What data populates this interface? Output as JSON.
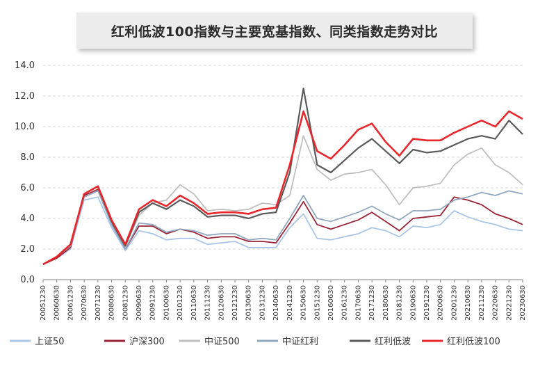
{
  "chart_data": {
    "type": "line",
    "title": "红利低波100指数与主要宽基指数、同类指数走势对比",
    "ylim": [
      0,
      14
    ],
    "yticks": [
      "0.0",
      "2.0",
      "4.0",
      "6.0",
      "8.0",
      "10.0",
      "12.0",
      "14.0"
    ],
    "grid": "horizontal dashed",
    "legend_position": "bottom",
    "x": [
      "20051230",
      "20060630",
      "20061230",
      "20070630",
      "20071230",
      "20080630",
      "20081230",
      "20090630",
      "20091230",
      "20100630",
      "20101230",
      "20110630",
      "20111230",
      "20120630",
      "20121230",
      "20130630",
      "20131230",
      "20140630",
      "20141230",
      "20150630",
      "20151230",
      "20160630",
      "20161230",
      "20170630",
      "20171230",
      "20180630",
      "20181230",
      "20190630",
      "20191230",
      "20200630",
      "20201230",
      "20210630",
      "20211230",
      "20220630",
      "20221230",
      "20230630"
    ],
    "series": [
      {
        "name": "上证50",
        "color": "#a9c6e8",
        "values": [
          1.0,
          1.4,
          2.0,
          5.2,
          5.4,
          3.4,
          1.9,
          3.2,
          3.0,
          2.6,
          2.7,
          2.7,
          2.3,
          2.4,
          2.5,
          2.1,
          2.1,
          2.1,
          3.4,
          4.3,
          2.7,
          2.6,
          2.8,
          3.0,
          3.4,
          3.2,
          2.8,
          3.5,
          3.4,
          3.6,
          4.5,
          4.1,
          3.8,
          3.6,
          3.3,
          3.2
        ]
      },
      {
        "name": "沪深300",
        "color": "#9b2335",
        "values": [
          1.0,
          1.4,
          2.1,
          5.5,
          5.9,
          3.7,
          2.0,
          3.5,
          3.5,
          3.0,
          3.3,
          3.1,
          2.7,
          2.8,
          2.8,
          2.5,
          2.5,
          2.4,
          3.7,
          5.1,
          3.6,
          3.3,
          3.6,
          3.9,
          4.4,
          3.8,
          3.2,
          4.0,
          4.1,
          4.2,
          5.4,
          5.2,
          4.9,
          4.3,
          4.0,
          3.6
        ]
      },
      {
        "name": "中证500",
        "color": "#bfbfbf",
        "values": [
          1.0,
          1.5,
          2.2,
          5.6,
          6.1,
          3.8,
          2.2,
          4.2,
          5.0,
          5.2,
          6.2,
          5.6,
          4.5,
          4.6,
          4.5,
          4.6,
          5.0,
          4.9,
          5.5,
          9.4,
          7.2,
          6.5,
          6.9,
          7.0,
          7.2,
          6.2,
          4.9,
          6.0,
          6.1,
          6.3,
          7.5,
          8.2,
          8.6,
          7.5,
          7.0,
          6.2
        ]
      },
      {
        "name": "中证红利",
        "color": "#8fa7bf",
        "values": [
          1.0,
          1.5,
          2.2,
          5.4,
          5.8,
          3.6,
          2.0,
          3.7,
          3.6,
          3.1,
          3.3,
          3.2,
          2.9,
          3.0,
          3.0,
          2.6,
          2.7,
          2.6,
          4.0,
          5.5,
          4.0,
          3.8,
          4.1,
          4.4,
          4.8,
          4.3,
          3.9,
          4.5,
          4.5,
          4.6,
          5.2,
          5.4,
          5.7,
          5.5,
          5.8,
          5.6
        ]
      },
      {
        "name": "红利低波",
        "color": "#5a5a5a",
        "values": [
          1.0,
          1.5,
          2.3,
          5.6,
          6.1,
          3.8,
          2.2,
          4.4,
          5.0,
          4.6,
          5.2,
          4.8,
          4.1,
          4.2,
          4.2,
          4.0,
          4.3,
          4.4,
          7.0,
          12.5,
          7.5,
          7.0,
          7.8,
          8.6,
          9.2,
          8.4,
          7.6,
          8.5,
          8.3,
          8.4,
          8.8,
          9.2,
          9.4,
          9.2,
          10.4,
          9.5
        ]
      },
      {
        "name": "红利低波100",
        "color": "#e8262b",
        "values": [
          1.0,
          1.5,
          2.3,
          5.6,
          6.1,
          3.9,
          2.3,
          4.6,
          5.2,
          4.8,
          5.5,
          5.0,
          4.3,
          4.4,
          4.4,
          4.3,
          4.6,
          4.7,
          7.5,
          11.0,
          8.4,
          7.9,
          8.8,
          9.8,
          10.2,
          9.0,
          8.1,
          9.2,
          9.1,
          9.1,
          9.6,
          10.0,
          10.4,
          10.0,
          11.0,
          10.5
        ]
      }
    ]
  }
}
